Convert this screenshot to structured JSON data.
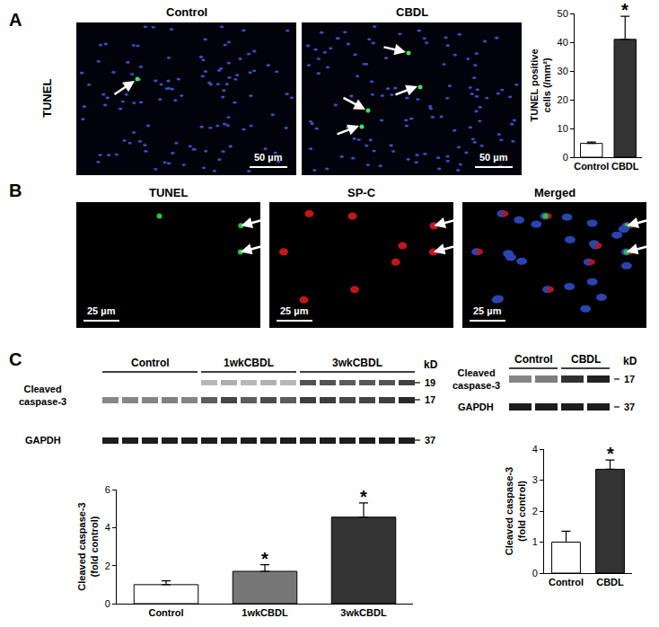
{
  "panels": {
    "A": {
      "label": "A",
      "row_label": "TUNEL",
      "images": [
        {
          "title": "Control",
          "scale_bar": "50 µm"
        },
        {
          "title": "CBDL",
          "scale_bar": "50 µm"
        }
      ]
    },
    "B": {
      "label": "B",
      "images": [
        {
          "title": "TUNEL",
          "scale_bar": "25 µm"
        },
        {
          "title": "SP-C",
          "scale_bar": "25 µm"
        },
        {
          "title": "Merged",
          "scale_bar": "25 µm"
        }
      ]
    },
    "C": {
      "label": "C",
      "blots": [
        {
          "groups": [
            "Control",
            "1wkCBDL",
            "3wkCBDL"
          ],
          "rows": [
            [
              "Cleaved",
              "caspase-3"
            ],
            [
              "GAPDH"
            ]
          ],
          "unit": "kD",
          "markers": [
            19,
            17,
            37
          ]
        },
        {
          "groups": [
            "Control",
            "CBDL"
          ],
          "rows": [
            [
              "Cleaved",
              "caspase-3"
            ],
            [
              "GAPDH"
            ]
          ],
          "unit": "kD",
          "markers": [
            17,
            37
          ]
        }
      ]
    }
  },
  "chart_data": [
    {
      "type": "bar",
      "y_label": [
        "TUNEL positive",
        "cells (/mm²)"
      ],
      "categories": [
        "Control",
        "CBDL"
      ],
      "values": [
        4.8,
        41
      ],
      "errors": [
        0.5,
        8
      ],
      "colors": [
        "#ffffff",
        "#333333"
      ],
      "ylim": [
        0,
        50
      ],
      "yticks": [
        0,
        10,
        20,
        30,
        40,
        50
      ],
      "grid": false,
      "annotations": [
        {
          "category": "CBDL",
          "text": "*"
        }
      ]
    },
    {
      "type": "bar",
      "y_label": [
        "Cleaved caspase-3",
        "(fold control)"
      ],
      "categories": [
        "Control",
        "1wkCBDL",
        "3wkCBDL"
      ],
      "values": [
        1.0,
        1.7,
        4.55
      ],
      "errors": [
        0.2,
        0.35,
        0.75
      ],
      "colors": [
        "#ffffff",
        "#777777",
        "#333333"
      ],
      "ylim": [
        0,
        6
      ],
      "yticks": [
        0,
        2,
        4,
        6
      ],
      "grid": false,
      "annotations": [
        {
          "category": "1wkCBDL",
          "text": "*"
        },
        {
          "category": "3wkCBDL",
          "text": "*"
        }
      ]
    },
    {
      "type": "bar",
      "y_label": [
        "Cleaved caspase-3",
        "(fold control)"
      ],
      "categories": [
        "Control",
        "CBDL"
      ],
      "values": [
        1.0,
        3.35
      ],
      "errors": [
        0.35,
        0.3
      ],
      "colors": [
        "#ffffff",
        "#333333"
      ],
      "ylim": [
        0,
        4
      ],
      "yticks": [
        0,
        1,
        2,
        3,
        4
      ],
      "grid": false,
      "annotations": [
        {
          "category": "CBDL",
          "text": "*"
        }
      ]
    }
  ]
}
